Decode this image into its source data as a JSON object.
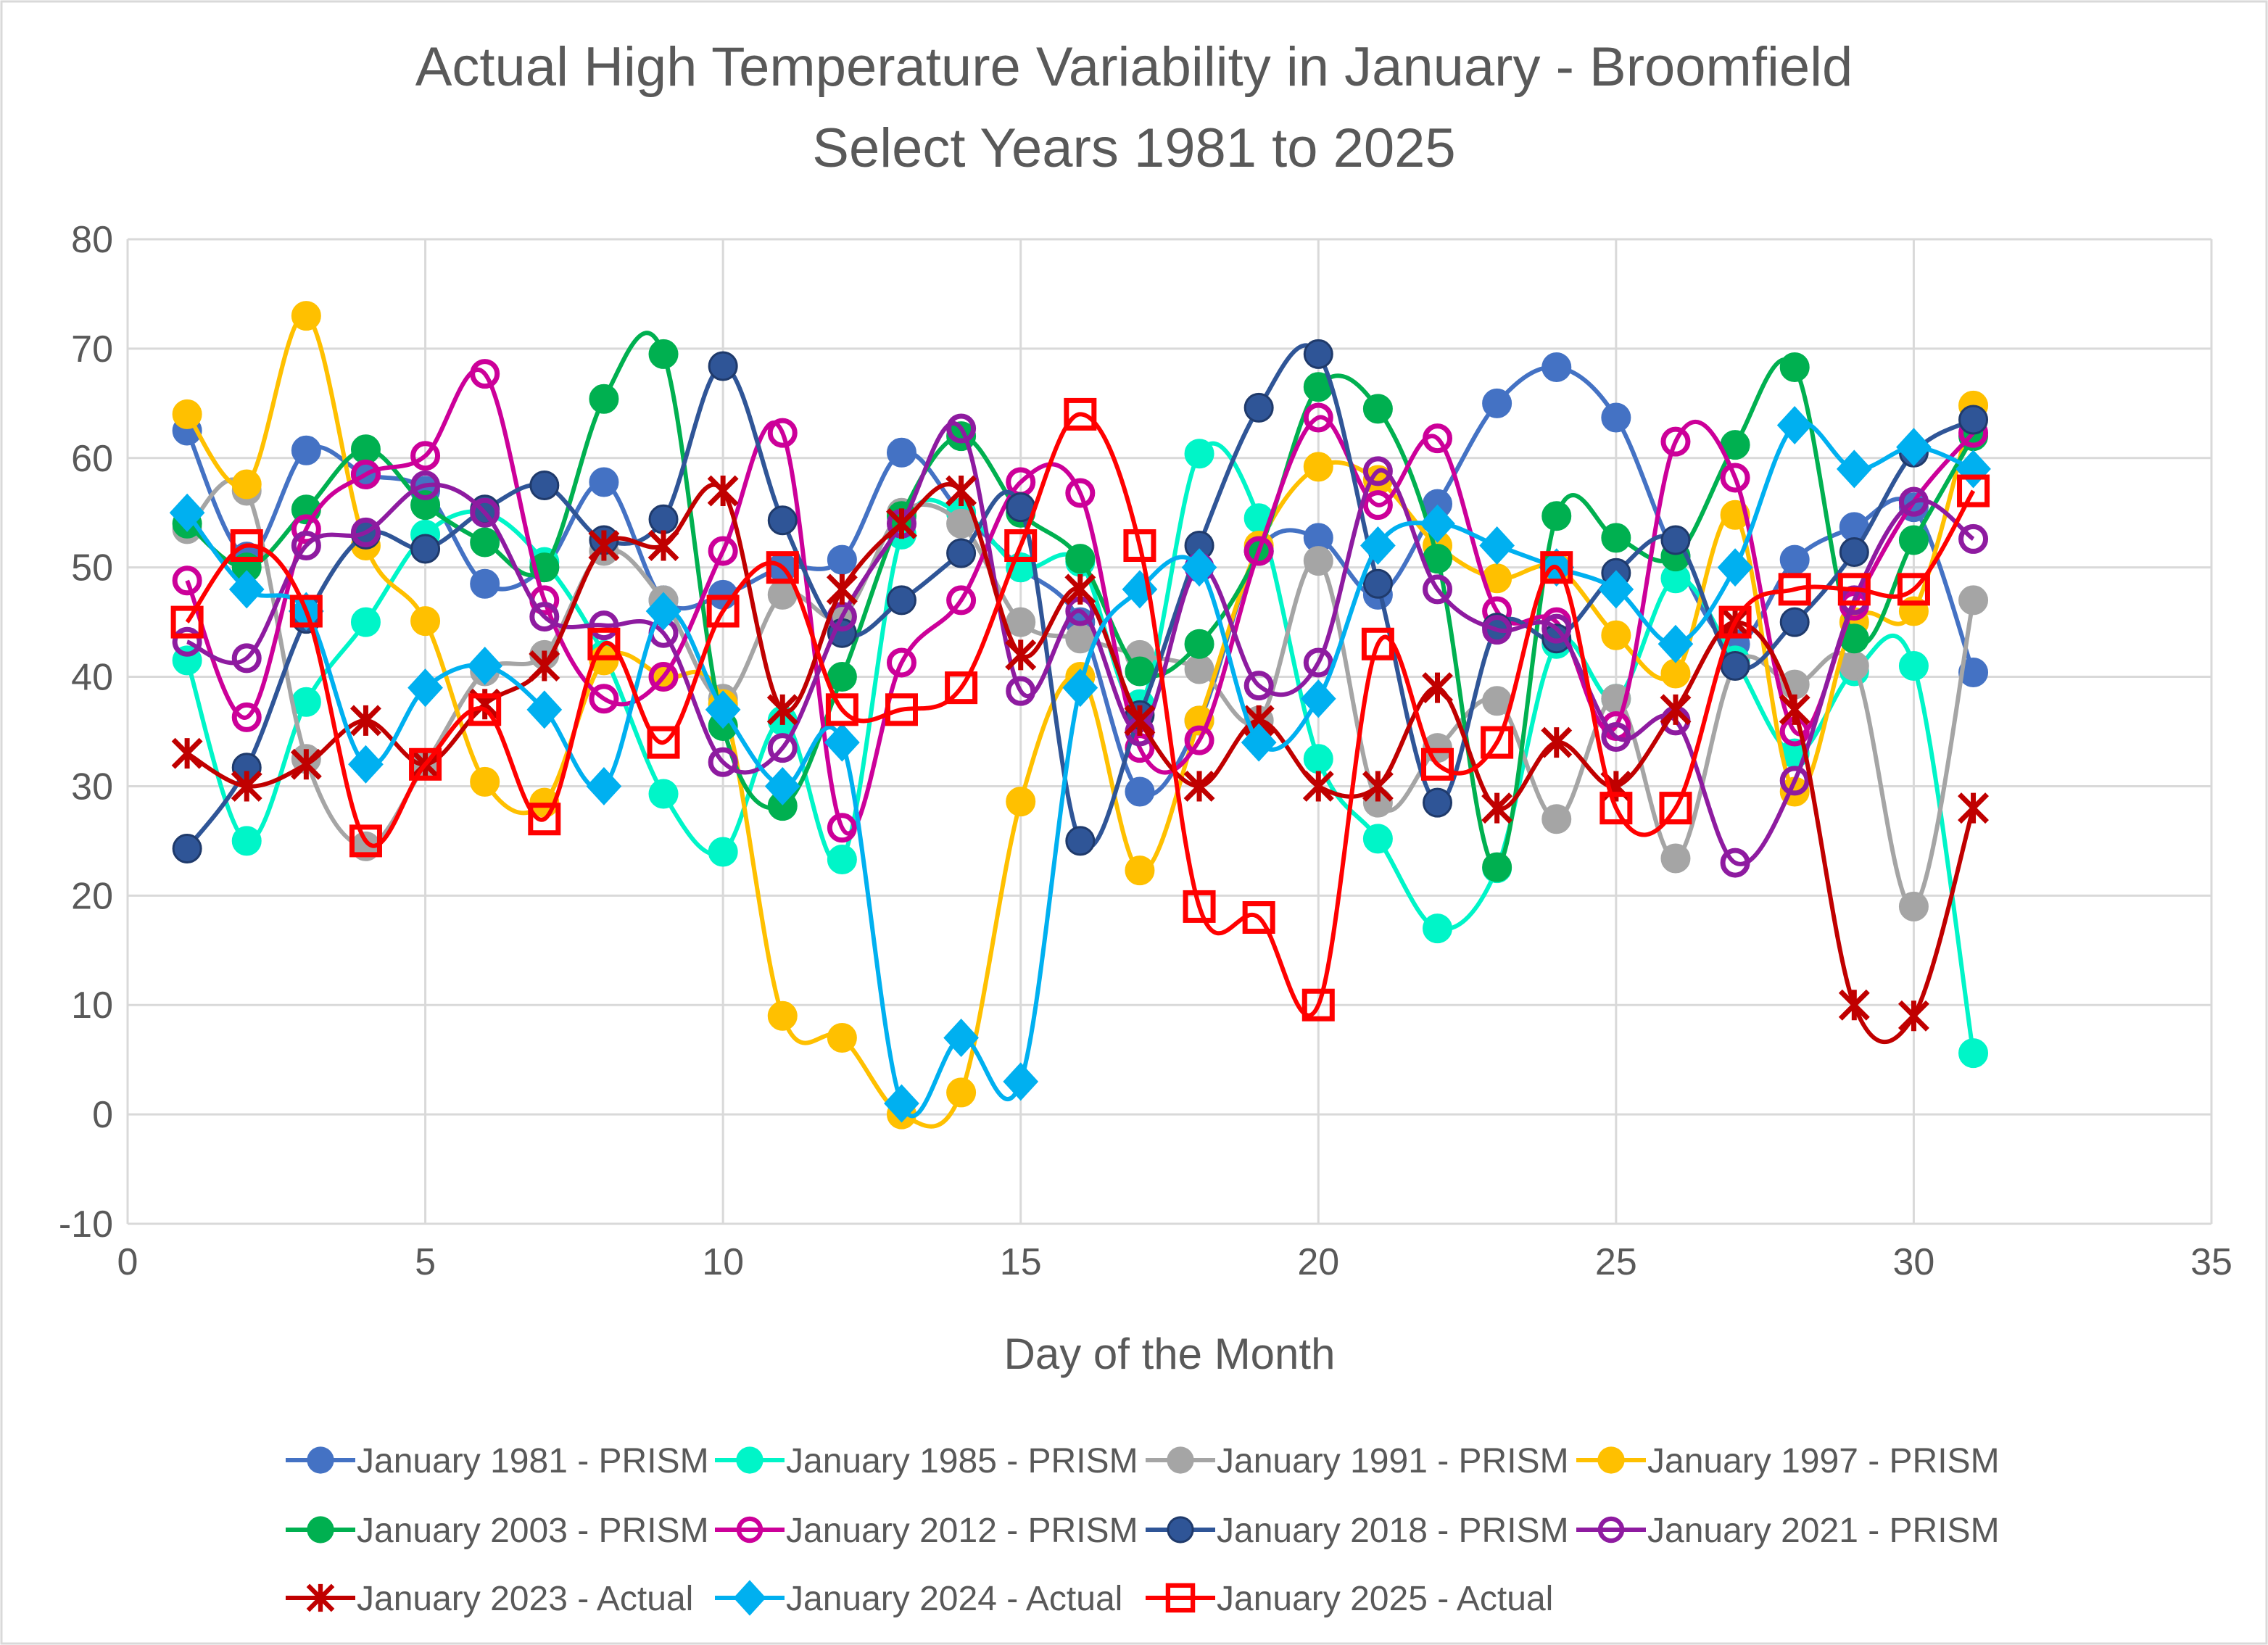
{
  "chart_data": {
    "type": "line",
    "title": "Actual High Temperature Variability in January - Broomfield",
    "subtitle": "Select Years 1981 to 2025",
    "xlabel": "Day of the Month",
    "ylabel": "",
    "xlim": [
      0,
      35
    ],
    "ylim": [
      -10,
      80
    ],
    "xticks": [
      0,
      5,
      10,
      15,
      20,
      25,
      30,
      35
    ],
    "yticks": [
      -10,
      0,
      10,
      20,
      30,
      40,
      50,
      60,
      70,
      80
    ],
    "grid": true,
    "smoothed": true,
    "legend_position": "bottom",
    "x": [
      1,
      2,
      3,
      4,
      5,
      6,
      7,
      8,
      9,
      10,
      11,
      12,
      13,
      14,
      15,
      16,
      17,
      18,
      19,
      20,
      21,
      22,
      23,
      24,
      25,
      26,
      27,
      28,
      29,
      30,
      31
    ],
    "series": [
      {
        "name": "January 1981 - PRISM",
        "color": "#4472C4",
        "marker": "circle",
        "values": [
          62.5,
          51,
          60.7,
          58.5,
          57,
          48.5,
          50,
          57.8,
          47,
          47.5,
          50,
          50.7,
          60.5,
          55,
          50,
          45,
          29.5,
          36,
          51.5,
          52.7,
          47.5,
          55.8,
          65,
          68.3,
          63.7,
          51,
          43,
          50.7,
          53.7,
          55.5,
          40.4
        ]
      },
      {
        "name": "January 1985 - PRISM",
        "color": "#00F5C8",
        "marker": "circle",
        "values": [
          41.5,
          25,
          37.7,
          45,
          53,
          55,
          50.5,
          42,
          29.3,
          24,
          36,
          23.3,
          53,
          55,
          50,
          50.5,
          37.5,
          60.4,
          54.5,
          32.5,
          25.2,
          17,
          22.5,
          43,
          38,
          49,
          41.5,
          33,
          40.5,
          41,
          5.6
        ]
      },
      {
        "name": "January 1991 - PRISM",
        "color": "#A5A5A5",
        "marker": "circle",
        "values": [
          53.5,
          57,
          32.5,
          24.5,
          32,
          40.5,
          42,
          51.5,
          47,
          38,
          47.5,
          45.5,
          55,
          54,
          45,
          43.5,
          42,
          40.7,
          36,
          50.6,
          28.5,
          33.5,
          37.8,
          27,
          38,
          23.4,
          41,
          39.3,
          41,
          19,
          47
        ]
      },
      {
        "name": "January 1997 - PRISM",
        "color": "#FFC000",
        "marker": "circle",
        "values": [
          64,
          57.6,
          73,
          52,
          45.1,
          30.4,
          28.5,
          41.5,
          40,
          37.5,
          9,
          7,
          0,
          2,
          28.6,
          40,
          22.3,
          36,
          52,
          59.2,
          58,
          52,
          49,
          50,
          43.8,
          40.3,
          54.8,
          29.5,
          45,
          46,
          64.8
        ]
      },
      {
        "name": "January 2003 - PRISM",
        "color": "#00B050",
        "marker": "circle",
        "values": [
          54,
          50,
          55.3,
          60.8,
          55.7,
          52.3,
          50,
          65.4,
          69.5,
          35.5,
          28.2,
          40,
          54.7,
          62,
          55,
          50.8,
          40.5,
          43,
          51.5,
          66.5,
          64.5,
          50.8,
          22.6,
          54.7,
          52.7,
          51,
          61.2,
          68.3,
          43.5,
          52.5,
          62
        ]
      },
      {
        "name": "January 2012 - PRISM",
        "color": "#CC0099",
        "marker": "open-circle",
        "values": [
          48.8,
          36.3,
          53.5,
          58.5,
          60.2,
          67.7,
          47,
          38,
          40,
          51.5,
          62.3,
          26.2,
          41.3,
          47,
          57.8,
          56.8,
          33.5,
          34.2,
          51.5,
          63.7,
          55.7,
          61.8,
          46,
          45,
          35.5,
          61.5,
          58.2,
          35,
          46.5,
          56,
          62.3
        ]
      },
      {
        "name": "January 2018 - PRISM",
        "color": "#2F5597",
        "marker": "circle",
        "values": [
          24.3,
          31.7,
          45.3,
          53,
          51.7,
          55.3,
          57.5,
          52.5,
          54.4,
          68.4,
          54.3,
          44,
          47,
          51.3,
          55.5,
          25,
          36.5,
          52,
          64.6,
          69.5,
          48.5,
          28.5,
          44.5,
          43.5,
          49.5,
          52.5,
          41,
          45,
          51.4,
          60.5,
          63.5
        ]
      },
      {
        "name": "January 2021 - PRISM",
        "color": "#8E1BA0",
        "marker": "open-circle",
        "values": [
          43.2,
          41.7,
          52,
          53.2,
          57.5,
          55,
          45.5,
          44.7,
          44,
          32.2,
          33.5,
          45.5,
          54,
          62.7,
          38.7,
          46,
          35,
          50,
          39.2,
          41.3,
          58.8,
          48,
          44.3,
          44.4,
          34.5,
          36,
          23,
          30.5,
          47,
          56,
          52.6
        ]
      },
      {
        "name": "January 2023 - Actual",
        "color": "#C00000",
        "marker": "star",
        "values": [
          33,
          30,
          32,
          36,
          32,
          37.5,
          41,
          52,
          52,
          57,
          37,
          48,
          54,
          57,
          42,
          48,
          36,
          30,
          36,
          30,
          30,
          39,
          28,
          34,
          30,
          37,
          45,
          37,
          10,
          9,
          28
        ]
      },
      {
        "name": "January 2024 - Actual",
        "color": "#00B0F0",
        "marker": "diamond",
        "values": [
          55,
          48,
          46,
          32,
          39,
          41,
          37,
          30,
          46,
          37,
          30,
          34,
          1,
          7,
          3,
          39,
          48,
          50,
          34,
          38,
          52,
          54,
          52,
          50,
          48,
          43,
          50,
          63,
          59,
          61,
          59
        ]
      },
      {
        "name": "January 2025 - Actual",
        "color": "#FF0000",
        "marker": "open-square",
        "values": [
          45,
          52,
          46,
          25,
          32,
          37,
          27,
          43,
          34,
          46,
          50,
          37,
          37,
          39,
          52,
          64,
          52,
          19,
          18,
          10,
          43,
          32,
          34,
          50,
          28,
          28,
          45,
          48,
          48,
          48,
          57
        ]
      }
    ]
  }
}
